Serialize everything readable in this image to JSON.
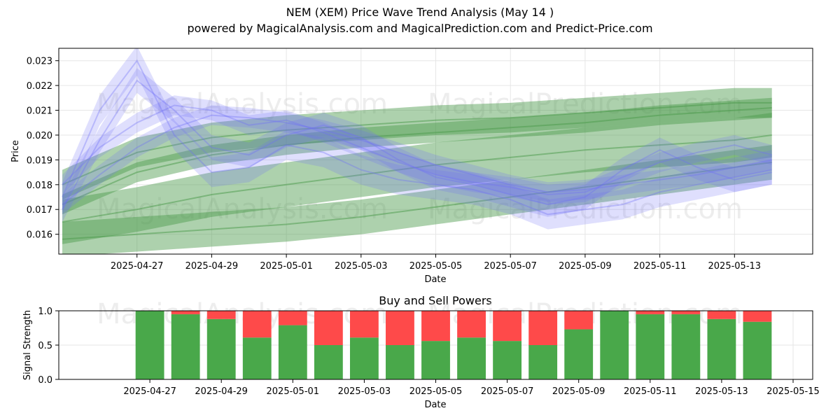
{
  "title": "NEM (XEM) Price Wave Trend Analysis (May 14 )",
  "subtitle": "powered by MagicalAnalysis.com and MagicalPrediction.com and Predict-Price.com",
  "watermarks": [
    "MagicalAnalysis.com",
    "MagicalPrediction.com"
  ],
  "colors": {
    "blue": "#6f6ff5",
    "green": "#4a9a4a",
    "buy": "#49a84a",
    "sell": "#fe4a4a",
    "grid": "#e6e6e6"
  },
  "chart_data": [
    {
      "type": "area",
      "title": "",
      "xlabel": "Date",
      "ylabel": "Price",
      "xlim": [
        "2025-04-25",
        "2025-05-15"
      ],
      "ylim": [
        0.0152,
        0.0235
      ],
      "x_ticks": [
        "2025-04-27",
        "2025-04-29",
        "2025-05-01",
        "2025-05-03",
        "2025-05-05",
        "2025-05-07",
        "2025-05-09",
        "2025-05-11",
        "2025-05-13"
      ],
      "y_ticks": [
        "0.016",
        "0.017",
        "0.018",
        "0.019",
        "0.020",
        "0.021",
        "0.022",
        "0.023"
      ],
      "grid": true,
      "series": [
        {
          "name": "blue wave 1",
          "color": "#6f6ff5",
          "x": [
            "2025-04-25",
            "2025-04-26",
            "2025-04-27",
            "2025-04-28",
            "2025-04-29",
            "2025-04-30",
            "2025-05-01",
            "2025-05-02",
            "2025-05-03",
            "2025-05-04",
            "2025-05-05",
            "2025-05-06",
            "2025-05-07",
            "2025-05-08",
            "2025-05-09",
            "2025-05-10",
            "2025-05-11",
            "2025-05-12",
            "2025-05-13",
            "2025-05-14"
          ],
          "values": [
            0.0172,
            0.0184,
            0.0195,
            0.0203,
            0.0208,
            0.0207,
            0.0205,
            0.0202,
            0.0198,
            0.0193,
            0.0188,
            0.0184,
            0.018,
            0.0177,
            0.0178,
            0.018,
            0.0182,
            0.0184,
            0.0187,
            0.019
          ],
          "band": 0.0004
        },
        {
          "name": "blue wave 2",
          "color": "#6f6ff5",
          "x": [
            "2025-04-25",
            "2025-04-26",
            "2025-04-27",
            "2025-04-28",
            "2025-04-29",
            "2025-04-30",
            "2025-05-01",
            "2025-05-02",
            "2025-05-03",
            "2025-05-04",
            "2025-05-05",
            "2025-05-06",
            "2025-05-07",
            "2025-05-08",
            "2025-05-09",
            "2025-05-10",
            "2025-05-11",
            "2025-05-12",
            "2025-05-13",
            "2025-05-14"
          ],
          "values": [
            0.017,
            0.0198,
            0.0222,
            0.021,
            0.0195,
            0.0192,
            0.02,
            0.0204,
            0.0199,
            0.019,
            0.0183,
            0.018,
            0.0176,
            0.0172,
            0.0175,
            0.0186,
            0.0194,
            0.0187,
            0.0182,
            0.0185
          ],
          "band": 0.0005
        },
        {
          "name": "blue wave 3",
          "color": "#6f6ff5",
          "x": [
            "2025-04-25",
            "2025-04-26",
            "2025-04-27",
            "2025-04-28",
            "2025-04-29",
            "2025-04-30",
            "2025-05-01",
            "2025-05-02",
            "2025-05-03",
            "2025-05-04",
            "2025-05-05",
            "2025-05-06",
            "2025-05-07",
            "2025-05-08",
            "2025-05-09",
            "2025-05-10",
            "2025-05-11",
            "2025-05-12",
            "2025-05-13",
            "2025-05-14"
          ],
          "values": [
            0.0175,
            0.021,
            0.023,
            0.02,
            0.0185,
            0.0187,
            0.0196,
            0.0193,
            0.0186,
            0.0182,
            0.018,
            0.0178,
            0.0174,
            0.0168,
            0.017,
            0.0172,
            0.0177,
            0.018,
            0.0183,
            0.0186
          ],
          "band": 0.0006
        },
        {
          "name": "blue wave 4",
          "color": "#6f6ff5",
          "x": [
            "2025-04-25",
            "2025-04-26",
            "2025-04-27",
            "2025-04-28",
            "2025-04-29",
            "2025-04-30",
            "2025-05-01",
            "2025-05-02",
            "2025-05-03",
            "2025-05-04",
            "2025-05-05",
            "2025-05-06",
            "2025-05-07",
            "2025-05-08",
            "2025-05-09",
            "2025-05-10",
            "2025-05-11",
            "2025-05-12",
            "2025-05-13",
            "2025-05-14"
          ],
          "values": [
            0.018,
            0.0195,
            0.0205,
            0.0212,
            0.021,
            0.0204,
            0.0206,
            0.0201,
            0.0195,
            0.0189,
            0.0184,
            0.0181,
            0.0179,
            0.0176,
            0.0177,
            0.0183,
            0.0189,
            0.0193,
            0.0196,
            0.0192
          ],
          "band": 0.0004
        },
        {
          "name": "green trend 1",
          "color": "#4a9a4a",
          "x": [
            "2025-04-25",
            "2025-04-27",
            "2025-04-29",
            "2025-05-01",
            "2025-05-03",
            "2025-05-05",
            "2025-05-07",
            "2025-05-09",
            "2025-05-11",
            "2025-05-13",
            "2025-05-14"
          ],
          "values": [
            0.0165,
            0.017,
            0.0176,
            0.018,
            0.0184,
            0.0188,
            0.0191,
            0.0194,
            0.0196,
            0.0198,
            0.02
          ],
          "band": 0.0009
        },
        {
          "name": "green trend 2",
          "color": "#4a9a4a",
          "x": [
            "2025-04-25",
            "2025-04-27",
            "2025-04-29",
            "2025-05-01",
            "2025-05-03",
            "2025-05-05",
            "2025-05-07",
            "2025-05-09",
            "2025-05-11",
            "2025-05-13",
            "2025-05-14"
          ],
          "values": [
            0.018,
            0.0193,
            0.0199,
            0.0202,
            0.0204,
            0.0206,
            0.0207,
            0.0209,
            0.0211,
            0.0213,
            0.0213
          ],
          "band": 0.0006
        },
        {
          "name": "green trend 3",
          "color": "#4a9a4a",
          "x": [
            "2025-04-25",
            "2025-04-27",
            "2025-04-29",
            "2025-05-01",
            "2025-05-03",
            "2025-05-05",
            "2025-05-07",
            "2025-05-09",
            "2025-05-11",
            "2025-05-13",
            "2025-05-14"
          ],
          "values": [
            0.0158,
            0.016,
            0.0162,
            0.0164,
            0.0167,
            0.0171,
            0.0175,
            0.0179,
            0.0183,
            0.0187,
            0.0189
          ],
          "band": 0.0007
        },
        {
          "name": "green trend 4",
          "color": "#4a9a4a",
          "x": [
            "2025-04-25",
            "2025-04-27",
            "2025-04-29",
            "2025-05-01",
            "2025-05-03",
            "2025-05-05",
            "2025-05-07",
            "2025-05-09",
            "2025-05-11",
            "2025-05-13",
            "2025-05-14"
          ],
          "values": [
            0.0172,
            0.0185,
            0.0192,
            0.0196,
            0.0199,
            0.0201,
            0.0203,
            0.0205,
            0.0208,
            0.021,
            0.0211
          ],
          "band": 0.0004
        }
      ]
    },
    {
      "type": "bar",
      "title": "Buy and Sell Powers",
      "xlabel": "Date",
      "ylabel": "Signal Strength",
      "xlim": [
        "2025-04-25",
        "2025-05-15"
      ],
      "ylim": [
        0,
        1
      ],
      "x_ticks": [
        "2025-04-27",
        "2025-04-29",
        "2025-05-01",
        "2025-05-03",
        "2025-05-05",
        "2025-05-07",
        "2025-05-09",
        "2025-05-11",
        "2025-05-13",
        "2025-05-15"
      ],
      "y_ticks": [
        "0.0",
        "0.5",
        "1.0"
      ],
      "grid": true,
      "categories": [
        "2025-04-27",
        "2025-04-28",
        "2025-04-29",
        "2025-04-30",
        "2025-05-01",
        "2025-05-02",
        "2025-05-03",
        "2025-05-04",
        "2025-05-05",
        "2025-05-06",
        "2025-05-07",
        "2025-05-08",
        "2025-05-09",
        "2025-05-10",
        "2025-05-11",
        "2025-05-12",
        "2025-05-13",
        "2025-05-14"
      ],
      "series": [
        {
          "name": "Buy",
          "color": "#49a84a",
          "values": [
            1.0,
            0.95,
            0.88,
            0.61,
            0.79,
            0.5,
            0.61,
            0.5,
            0.56,
            0.61,
            0.56,
            0.5,
            0.73,
            1.0,
            0.95,
            0.95,
            0.88,
            0.84
          ]
        },
        {
          "name": "Sell",
          "color": "#fe4a4a",
          "values": [
            0.0,
            0.05,
            0.12,
            0.39,
            0.21,
            0.5,
            0.39,
            0.5,
            0.44,
            0.39,
            0.44,
            0.5,
            0.27,
            0.0,
            0.05,
            0.05,
            0.12,
            0.16
          ]
        }
      ]
    }
  ]
}
